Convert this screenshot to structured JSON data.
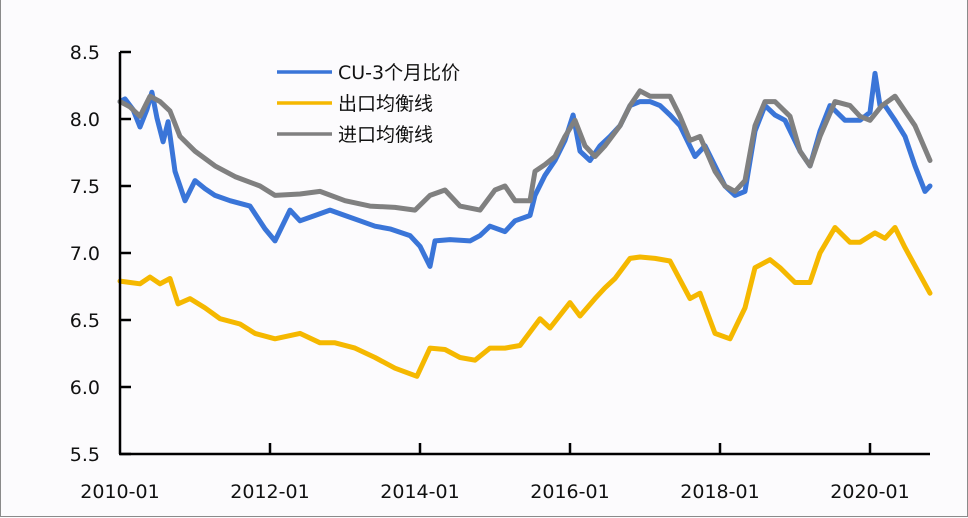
{
  "chart_data": {
    "type": "line",
    "title": "",
    "xlabel": "",
    "ylabel": "",
    "ylim": [
      5.5,
      8.5
    ],
    "yticks": [
      "8.5",
      "8.0",
      "7.5",
      "7.0",
      "6.5",
      "6.0",
      "5.5"
    ],
    "ytick_values": [
      8.5,
      8.0,
      7.5,
      7.0,
      6.5,
      6.0,
      5.5
    ],
    "xticks": [
      "2010-01",
      "2012-01",
      "2014-01",
      "2016-01",
      "2018-01",
      "2020-01"
    ],
    "xtick_months": [
      0,
      24,
      48,
      72,
      96,
      120
    ],
    "xlim_months": [
      0,
      130
    ],
    "grid": false,
    "legend_position": "upper-left-inside",
    "x_unit": "months since 2010-01",
    "series": [
      {
        "name": "CU-3个月比价",
        "color": "#3a75d8",
        "x": [
          0,
          0.8,
          2.1,
          3.2,
          4.3,
          5.1,
          5.9,
          6.9,
          7.7,
          8.8,
          10.4,
          12,
          13.6,
          15.2,
          17.6,
          20.8,
          23.2,
          24.8,
          27.2,
          28.8,
          31.2,
          33.6,
          36,
          38.4,
          40.8,
          43.2,
          46.4,
          48,
          49.6,
          50.4,
          52.8,
          56,
          57.6,
          59.2,
          61.6,
          63.2,
          65.6,
          66.4,
          68,
          69.6,
          71.2,
          72.5,
          73.6,
          75.2,
          76.8,
          78.4,
          80,
          81.6,
          83.2,
          84.8,
          86.4,
          88,
          89.6,
          92,
          93.6,
          95.2,
          96.8,
          98.4,
          100,
          101.6,
          103.2,
          104.8,
          106.4,
          108.8,
          110.4,
          112,
          113.6,
          116,
          118.4,
          120,
          120.8,
          121.6,
          122.4,
          124,
          125.6,
          127.2,
          128.8,
          129.6
        ],
        "values": [
          8.13,
          8.15,
          8.07,
          7.94,
          8.07,
          8.2,
          8.01,
          7.83,
          7.98,
          7.61,
          7.39,
          7.54,
          7.48,
          7.43,
          7.39,
          7.35,
          7.18,
          7.09,
          7.32,
          7.24,
          7.28,
          7.32,
          7.28,
          7.24,
          7.2,
          7.18,
          7.13,
          7.05,
          6.9,
          7.09,
          7.1,
          7.09,
          7.13,
          7.2,
          7.16,
          7.24,
          7.28,
          7.43,
          7.58,
          7.69,
          7.84,
          8.03,
          7.76,
          7.69,
          7.8,
          7.87,
          7.95,
          8.1,
          8.13,
          8.13,
          8.1,
          8.03,
          7.95,
          7.72,
          7.8,
          7.65,
          7.5,
          7.43,
          7.46,
          7.91,
          8.1,
          8.03,
          7.99,
          7.76,
          7.65,
          7.91,
          8.1,
          7.99,
          7.99,
          8.05,
          8.34,
          8.1,
          8.1,
          7.99,
          7.87,
          7.65,
          7.46,
          7.5
        ]
      },
      {
        "name": "出口均衡线",
        "color": "#f5b800",
        "x": [
          0,
          3.2,
          4.8,
          6.4,
          8,
          9.3,
          11.2,
          13.6,
          16,
          19.2,
          21.6,
          24.8,
          28.8,
          32,
          34.4,
          37.6,
          40.8,
          44,
          47.5,
          49.6,
          52,
          54.4,
          56.8,
          59.2,
          61.6,
          64,
          67.2,
          68.8,
          72,
          73.6,
          76,
          77.6,
          79.2,
          81.6,
          83.2,
          85.6,
          88,
          91.2,
          92.8,
          95.2,
          97.6,
          100,
          101.6,
          104,
          105.6,
          108,
          110.4,
          112,
          114.4,
          116.8,
          118.4,
          120.8,
          122.4,
          124,
          125.6,
          129.6
        ],
        "values": [
          6.79,
          6.77,
          6.82,
          6.77,
          6.81,
          6.62,
          6.66,
          6.59,
          6.51,
          6.47,
          6.4,
          6.36,
          6.4,
          6.33,
          6.33,
          6.29,
          6.22,
          6.14,
          6.08,
          6.29,
          6.28,
          6.22,
          6.2,
          6.29,
          6.29,
          6.31,
          6.51,
          6.44,
          6.63,
          6.53,
          6.66,
          6.74,
          6.81,
          6.96,
          6.97,
          6.96,
          6.94,
          6.66,
          6.7,
          6.4,
          6.36,
          6.59,
          6.89,
          6.95,
          6.89,
          6.78,
          6.78,
          7.0,
          7.19,
          7.08,
          7.08,
          7.15,
          7.11,
          7.19,
          7.04,
          6.7
        ]
      },
      {
        "name": "进口均衡线",
        "color": "#808080",
        "x": [
          0,
          1.6,
          3.2,
          4.8,
          6.4,
          8,
          9.6,
          12,
          15.2,
          18.4,
          22.4,
          24.8,
          28.8,
          32,
          36,
          40,
          44,
          47.2,
          49.6,
          52,
          54.4,
          57.6,
          60,
          61.6,
          63.2,
          65.6,
          66.4,
          68,
          69.6,
          71.2,
          72.8,
          74.4,
          76,
          77.6,
          80,
          81.6,
          83.2,
          84.8,
          86.4,
          88,
          89.6,
          91.2,
          92.8,
          95.2,
          96.8,
          98.4,
          100,
          101.6,
          103.2,
          104.8,
          107.2,
          108.8,
          110.4,
          112,
          114.4,
          116.8,
          118.4,
          120,
          121.9,
          124,
          125.6,
          127.2,
          129.6
        ],
        "values": [
          8.13,
          8.09,
          8.02,
          8.17,
          8.13,
          8.06,
          7.87,
          7.76,
          7.65,
          7.57,
          7.5,
          7.43,
          7.44,
          7.46,
          7.39,
          7.35,
          7.34,
          7.32,
          7.43,
          7.47,
          7.35,
          7.32,
          7.47,
          7.5,
          7.39,
          7.39,
          7.61,
          7.66,
          7.72,
          7.87,
          7.99,
          7.8,
          7.72,
          7.8,
          7.95,
          8.1,
          8.21,
          8.17,
          8.17,
          8.17,
          8.02,
          7.84,
          7.87,
          7.61,
          7.5,
          7.46,
          7.54,
          7.95,
          8.13,
          8.13,
          8.02,
          7.76,
          7.65,
          7.87,
          8.13,
          8.1,
          8.02,
          7.99,
          8.1,
          8.17,
          8.06,
          7.95,
          7.69
        ]
      }
    ]
  },
  "legend": {
    "items": [
      {
        "label": "CU-3个月比价",
        "color": "#3a75d8"
      },
      {
        "label": "出口均衡线",
        "color": "#f5b800"
      },
      {
        "label": "进口均衡线",
        "color": "#808080"
      }
    ]
  }
}
